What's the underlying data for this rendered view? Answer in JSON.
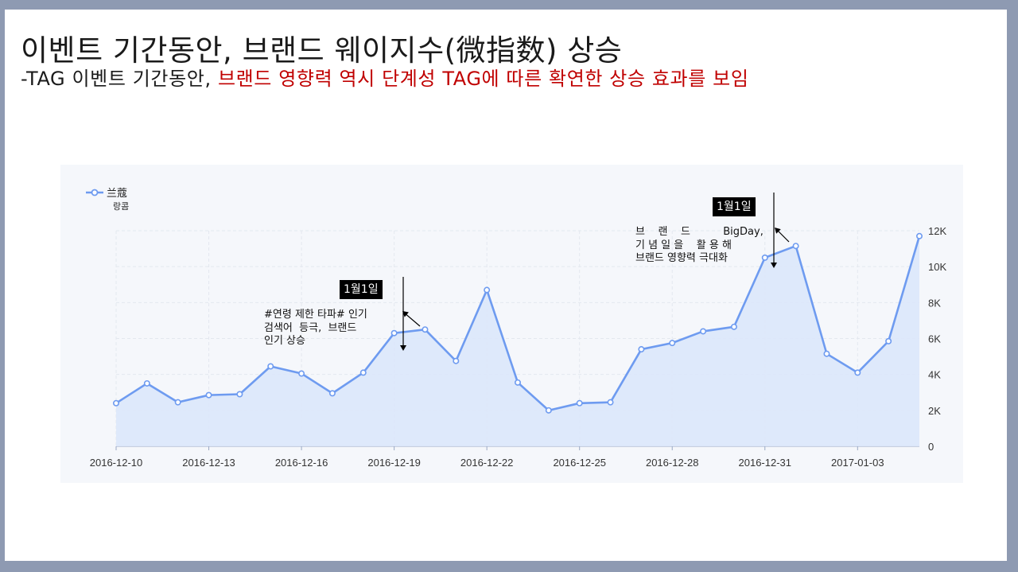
{
  "slide": {
    "title": "이벤트 기간동안, 브랜드 웨이지수(微指数) 상승",
    "subtitle_prefix": "-TAG 이벤트 기간동안, ",
    "subtitle_highlight": "브랜드 영향력 역시 단계성 TAG에 따른 확연한 상승 효과를 보임"
  },
  "colors": {
    "line": "#6e9bf0",
    "area": "#dce7fb",
    "highlight_text": "#c00000",
    "axis_text": "#333333"
  },
  "annotations": [
    {
      "label": "1월1일",
      "note": "#연령 제한 타파# 인기\n검색어  등극,  브랜드\n인기 상승"
    },
    {
      "label": "1월1일",
      "note": "브    랜    드          BigDay,\n기 념 일 을    활 용 해\n브랜드 영향력 극대화"
    }
  ],
  "chart_data": {
    "type": "area",
    "legend": {
      "series_name": "兰蔻",
      "series_subtitle": "랑콤",
      "position": "top-left"
    },
    "series": [
      {
        "name": "兰蔻",
        "x": [
          "2016-12-10",
          "2016-12-11",
          "2016-12-12",
          "2016-12-13",
          "2016-12-14",
          "2016-12-15",
          "2016-12-16",
          "2016-12-17",
          "2016-12-18",
          "2016-12-19",
          "2016-12-20",
          "2016-12-21",
          "2016-12-22",
          "2016-12-23",
          "2016-12-24",
          "2016-12-25",
          "2016-12-26",
          "2016-12-27",
          "2016-12-28",
          "2016-12-29",
          "2016-12-30",
          "2016-12-31",
          "2017-01-01",
          "2017-01-02",
          "2017-01-03",
          "2017-01-04",
          "2017-01-05"
        ],
        "values": [
          2400,
          3500,
          2450,
          2850,
          2900,
          4450,
          4050,
          2950,
          4100,
          6300,
          6500,
          4750,
          8700,
          3550,
          2000,
          2400,
          2450,
          5400,
          5750,
          6400,
          6650,
          10500,
          11150,
          5150,
          4100,
          5850,
          11700
        ]
      }
    ],
    "x_tick_labels": [
      "2016-12-10",
      "2016-12-13",
      "2016-12-16",
      "2016-12-19",
      "2016-12-22",
      "2016-12-25",
      "2016-12-28",
      "2016-12-31",
      "2017-01-03"
    ],
    "y_tick_labels": [
      "0",
      "2K",
      "4K",
      "6K",
      "8K",
      "10K",
      "12K"
    ],
    "ylim": [
      0,
      12000
    ],
    "y_axis_position": "right",
    "grid": true,
    "title": "",
    "xlabel": "",
    "ylabel": ""
  }
}
